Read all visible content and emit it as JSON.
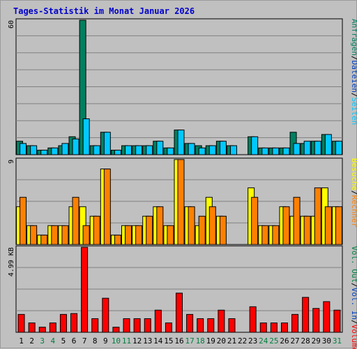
{
  "chart_data": {
    "type": "bar",
    "title": "Tages-Statistik im Monat Januar 2026",
    "days": [
      "1",
      "2",
      "3",
      "4",
      "5",
      "6",
      "7",
      "8",
      "9",
      "10",
      "11",
      "12",
      "13",
      "14",
      "15",
      "16",
      "17",
      "18",
      "19",
      "20",
      "21",
      "22",
      "23",
      "24",
      "25",
      "26",
      "27",
      "28",
      "29",
      "30",
      "31"
    ],
    "weekend_days": [
      "3",
      "4",
      "10",
      "11",
      "17",
      "18",
      "24",
      "25",
      "31"
    ],
    "colors": {
      "title": "#0000cc",
      "weekday": "#000000",
      "weekend": "#008040",
      "anfragen": "#008060",
      "dateien": "#0040c0",
      "seiten": "#00c8ff",
      "besuche": "#ffff00",
      "rechner": "#ff8000",
      "vol_out": "#008040",
      "vol_in": "#0040c0",
      "volumen": "#ff0000"
    },
    "panels": [
      {
        "id": "top",
        "ymax": 60,
        "ymax_label": "60",
        "series": [
          {
            "name": "Anfragen",
            "color": "#008060",
            "values": [
              6,
              4,
              2,
              3,
              4,
              8,
              60,
              4,
              10,
              2,
              4,
              4,
              4,
              6,
              3,
              11,
              5,
              4,
              4,
              6,
              4,
              0,
              8,
              3,
              3,
              3,
              10,
              5,
              6,
              9,
              6
            ]
          },
          {
            "name": "Seiten",
            "color": "#00c8ff",
            "values": [
              5,
              4,
              2,
              3,
              5,
              7,
              16,
              4,
              10,
              2,
              4,
              4,
              4,
              6,
              3,
              11,
              5,
              3,
              4,
              6,
              4,
              0,
              8,
              3,
              3,
              3,
              5,
              6,
              6,
              9,
              6
            ]
          }
        ],
        "side_labels": [
          "Anfragen",
          "Dateien",
          "Seiten"
        ]
      },
      {
        "id": "middle",
        "ymax": 9,
        "ymax_label": "9",
        "series": [
          {
            "name": "Besuche",
            "color": "#ffff00",
            "values": [
              4,
              2,
              1,
              2,
              2,
              4,
              4,
              3,
              8,
              1,
              2,
              2,
              3,
              4,
              2,
              9,
              4,
              2,
              5,
              3,
              0,
              0,
              6,
              2,
              2,
              4,
              3,
              3,
              3,
              6,
              4
            ]
          },
          {
            "name": "Rechner",
            "color": "#ff8000",
            "values": [
              5,
              2,
              1,
              2,
              2,
              5,
              2,
              3,
              8,
              1,
              2,
              2,
              3,
              4,
              2,
              9,
              4,
              3,
              4,
              3,
              0,
              0,
              5,
              2,
              2,
              4,
              5,
              3,
              6,
              4,
              4
            ]
          }
        ],
        "side_labels": [
          "Besuche",
          "Rechner"
        ]
      },
      {
        "id": "bottom",
        "ymax": 4.99,
        "ymax_label": "4.99 KB",
        "series": [
          {
            "name": "Volumen",
            "color": "#ff0000",
            "values": [
              1.05,
              0.55,
              0.3,
              0.55,
              1.05,
              1.1,
              4.99,
              0.8,
              2.0,
              0.3,
              0.8,
              0.8,
              0.8,
              1.3,
              0.55,
              2.3,
              1.05,
              0.8,
              0.8,
              1.3,
              0.8,
              0,
              1.5,
              0.55,
              0.55,
              0.55,
              1.05,
              2.05,
              1.4,
              1.8,
              1.3
            ]
          }
        ],
        "side_labels": [
          "Vol. Out",
          "Vol. In",
          "Volumen"
        ]
      }
    ]
  },
  "side_labels": {
    "top": [
      "Anfragen",
      "Dateien",
      "Seiten"
    ],
    "middle": [
      "Besuche",
      "Rechner"
    ],
    "bottom": [
      "Vol. Out",
      "Vol. In",
      "Volumen"
    ]
  }
}
